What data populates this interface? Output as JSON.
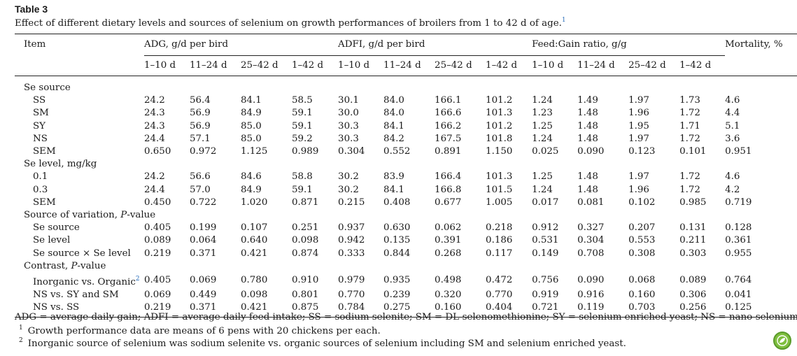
{
  "table_label": "Table 3",
  "caption": "Effect of different dietary levels and sources of selenium on growth performances of broilers from 1 to 42 d of age.",
  "caption_footnote_ref": "1",
  "header": {
    "item": "Item",
    "groups": [
      "ADG, g/d per bird",
      "ADFI, g/d per bird",
      "Feed:Gain ratio, g/g"
    ],
    "mortality": "Mortality, %",
    "periods": [
      "1–10 d",
      "11–24 d",
      "25–42 d",
      "1–42 d"
    ]
  },
  "sections": [
    {
      "title": "Se source",
      "rows": [
        {
          "label": "SS",
          "values": [
            "24.2",
            "56.4",
            "84.1",
            "58.5",
            "30.1",
            "84.0",
            "166.1",
            "101.2",
            "1.24",
            "1.49",
            "1.97",
            "1.73",
            "4.6"
          ]
        },
        {
          "label": "SM",
          "values": [
            "24.3",
            "56.9",
            "84.9",
            "59.1",
            "30.0",
            "84.0",
            "166.6",
            "101.3",
            "1.23",
            "1.48",
            "1.96",
            "1.72",
            "4.4"
          ]
        },
        {
          "label": "SY",
          "values": [
            "24.3",
            "56.9",
            "85.0",
            "59.1",
            "30.3",
            "84.1",
            "166.2",
            "101.2",
            "1.25",
            "1.48",
            "1.95",
            "1.71",
            "5.1"
          ]
        },
        {
          "label": "NS",
          "values": [
            "24.4",
            "57.1",
            "85.0",
            "59.2",
            "30.3",
            "84.2",
            "167.5",
            "101.8",
            "1.24",
            "1.48",
            "1.97",
            "1.72",
            "3.6"
          ]
        },
        {
          "label": "SEM",
          "values": [
            "0.650",
            "0.972",
            "1.125",
            "0.989",
            "0.304",
            "0.552",
            "0.891",
            "1.150",
            "0.025",
            "0.090",
            "0.123",
            "0.101",
            "0.951"
          ]
        }
      ]
    },
    {
      "title": "Se level, mg/kg",
      "rows": [
        {
          "label": "0.1",
          "values": [
            "24.2",
            "56.6",
            "84.6",
            "58.8",
            "30.2",
            "83.9",
            "166.4",
            "101.3",
            "1.25",
            "1.48",
            "1.97",
            "1.72",
            "4.6"
          ]
        },
        {
          "label": "0.3",
          "values": [
            "24.4",
            "57.0",
            "84.9",
            "59.1",
            "30.2",
            "84.1",
            "166.8",
            "101.5",
            "1.24",
            "1.48",
            "1.96",
            "1.72",
            "4.2"
          ]
        },
        {
          "label": "SEM",
          "values": [
            "0.450",
            "0.722",
            "1.020",
            "0.871",
            "0.215",
            "0.408",
            "0.677",
            "1.005",
            "0.017",
            "0.081",
            "0.102",
            "0.985",
            "0.719"
          ]
        }
      ]
    },
    {
      "title": "Source of variation, P-value",
      "rows": [
        {
          "label": "Se source",
          "values": [
            "0.405",
            "0.199",
            "0.107",
            "0.251",
            "0.937",
            "0.630",
            "0.062",
            "0.218",
            "0.912",
            "0.327",
            "0.207",
            "0.131",
            "0.128"
          ]
        },
        {
          "label": "Se level",
          "values": [
            "0.089",
            "0.064",
            "0.640",
            "0.098",
            "0.942",
            "0.135",
            "0.391",
            "0.186",
            "0.531",
            "0.304",
            "0.553",
            "0.211",
            "0.361"
          ]
        },
        {
          "label": "Se source × Se level",
          "values": [
            "0.219",
            "0.371",
            "0.421",
            "0.874",
            "0.333",
            "0.844",
            "0.268",
            "0.117",
            "0.149",
            "0.708",
            "0.308",
            "0.303",
            "0.955"
          ]
        }
      ]
    },
    {
      "title": "Contrast, P-value",
      "rows": [
        {
          "label": "Inorganic vs. Organic",
          "ref": "2",
          "values": [
            "0.405",
            "0.069",
            "0.780",
            "0.910",
            "0.979",
            "0.935",
            "0.498",
            "0.472",
            "0.756",
            "0.090",
            "0.068",
            "0.089",
            "0.764"
          ]
        },
        {
          "label": "NS vs. SY and SM",
          "values": [
            "0.069",
            "0.449",
            "0.098",
            "0.801",
            "0.770",
            "0.239",
            "0.320",
            "0.770",
            "0.919",
            "0.916",
            "0.160",
            "0.306",
            "0.041"
          ]
        },
        {
          "label": "NS vs. SS",
          "values": [
            "0.219",
            "0.371",
            "0.421",
            "0.875",
            "0.784",
            "0.275",
            "0.160",
            "0.404",
            "0.721",
            "0.119",
            "0.703",
            "0.256",
            "0.125"
          ]
        }
      ]
    }
  ],
  "footnotes": {
    "abbrev": "ADG = average daily gain; ADFI = average daily feed intake; SS = sodium selenite; SM = DL-selenomethionine; SY = selenium enriched yeast; NS = nano-selenium.",
    "notes": [
      {
        "mark": "1",
        "text": "Growth performance data are means of 6 pens with 20 chickens per each."
      },
      {
        "mark": "2",
        "text": "Inorganic source of selenium was sodium selenite vs. organic sources of selenium including SM and selenium enriched yeast."
      }
    ]
  },
  "colors": {
    "link": "#2a6ebb",
    "badge": "#7fbf3f",
    "rule": "#222222"
  },
  "icons": {
    "badge": "leaf-logo-icon"
  }
}
